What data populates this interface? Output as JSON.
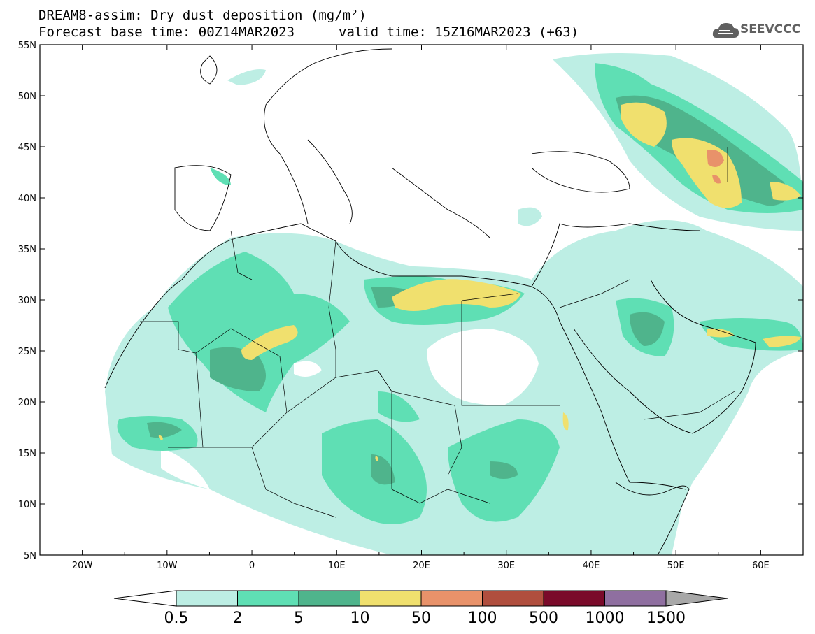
{
  "header": {
    "title": "DREAM8-assim: Dry dust deposition (mg/m²)",
    "base_time": "Forecast base time: 00Z14MAR2023",
    "valid_time": "valid time: 15Z16MAR2023 (+63)",
    "logo_text": "SEEVCCC"
  },
  "map": {
    "lon_range": [
      -25,
      65
    ],
    "lat_range": [
      5,
      55
    ],
    "lat_labels": [
      "5N",
      "10N",
      "15N",
      "20N",
      "25N",
      "30N",
      "35N",
      "40N",
      "45N",
      "50N",
      "55N"
    ],
    "lon_labels": [
      "20W",
      "10W",
      "0",
      "10E",
      "20E",
      "30E",
      "40E",
      "50E",
      "60E"
    ]
  },
  "colorbar": {
    "labels": [
      "0.5",
      "2",
      "5",
      "10",
      "50",
      "100",
      "500",
      "1000",
      "1500"
    ],
    "colors": [
      "#bdeee4",
      "#5fdfb4",
      "#4fb48c",
      "#f0e06e",
      "#e8926a",
      "#b04e3e",
      "#7a0a2a",
      "#8f6fa0"
    ],
    "under_color": "#ffffff",
    "over_color": "#a8a8a8"
  }
}
